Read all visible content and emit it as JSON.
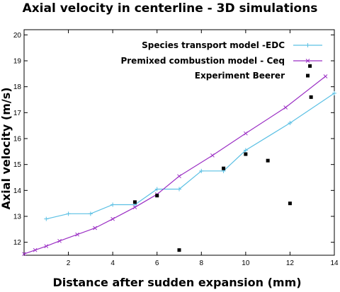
{
  "chart_data": {
    "type": "line",
    "title": "Axial velocity in centerline - 3D simulations",
    "xlabel": "Distance after sudden expansion (mm)",
    "ylabel": "Axial velocity (m/s)",
    "xlim": [
      0,
      14
    ],
    "ylim": [
      11.5,
      20.2
    ],
    "xticks": [
      2,
      4,
      6,
      8,
      10,
      12,
      14
    ],
    "yticks": [
      12,
      13,
      14,
      15,
      16,
      17,
      18,
      19,
      20
    ],
    "grid": false,
    "legend_position": "top-right",
    "series": [
      {
        "name": "Species transport model -EDC",
        "style": "line",
        "marker": "+",
        "color": "#5bc0e4",
        "x": [
          1,
          2,
          3,
          4,
          5,
          6,
          7,
          8,
          9,
          10,
          12,
          14
        ],
        "y": [
          12.9,
          13.1,
          13.1,
          13.45,
          13.45,
          14.05,
          14.05,
          14.75,
          14.75,
          15.55,
          16.6,
          17.75
        ]
      },
      {
        "name": "Premixed combustion model - Ceq",
        "style": "line",
        "marker": "x",
        "color": "#9b2fc4",
        "x": [
          0,
          0.5,
          1,
          1.6,
          2.4,
          3.2,
          4,
          5,
          6,
          7,
          8.5,
          10,
          11.8,
          13.6
        ],
        "y": [
          11.55,
          11.7,
          11.85,
          12.05,
          12.3,
          12.55,
          12.9,
          13.35,
          13.85,
          14.55,
          15.35,
          16.2,
          17.2,
          18.4
        ]
      },
      {
        "name": "Experiment Beerer",
        "style": "points",
        "marker": "square",
        "color": "#000000",
        "x": [
          5,
          6,
          7,
          9,
          10,
          11,
          12,
          12.9,
          12.95
        ],
        "y": [
          13.55,
          13.8,
          11.7,
          14.85,
          15.4,
          15.15,
          13.5,
          18.8,
          17.6
        ]
      }
    ]
  }
}
